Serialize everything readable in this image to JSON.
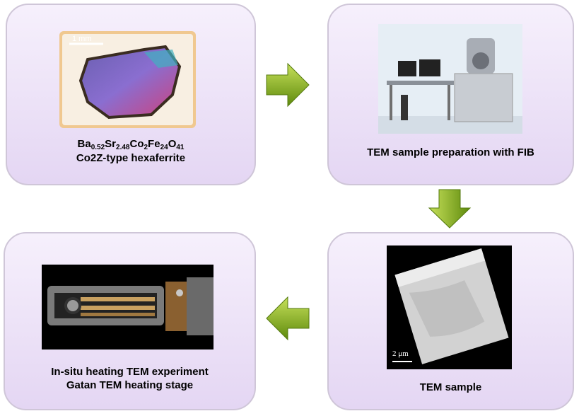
{
  "steps": [
    {
      "image_label": "1 mm",
      "formula": [
        {
          "symbol": "Ba",
          "subscript": "0.52"
        },
        {
          "symbol": "Sr",
          "subscript": "2.48"
        },
        {
          "symbol": "Co",
          "subscript": "2"
        },
        {
          "symbol": "Fe",
          "subscript": "24"
        },
        {
          "symbol": "O",
          "subscript": "41"
        }
      ],
      "caption": "Co2Z-type hexaferrite"
    },
    {
      "caption": "TEM sample preparation with FIB"
    },
    {
      "image_label": "2 μm",
      "caption": "TEM sample"
    },
    {
      "captions": [
        "In-situ heating TEM experiment",
        "Gatan TEM heating stage"
      ]
    }
  ]
}
